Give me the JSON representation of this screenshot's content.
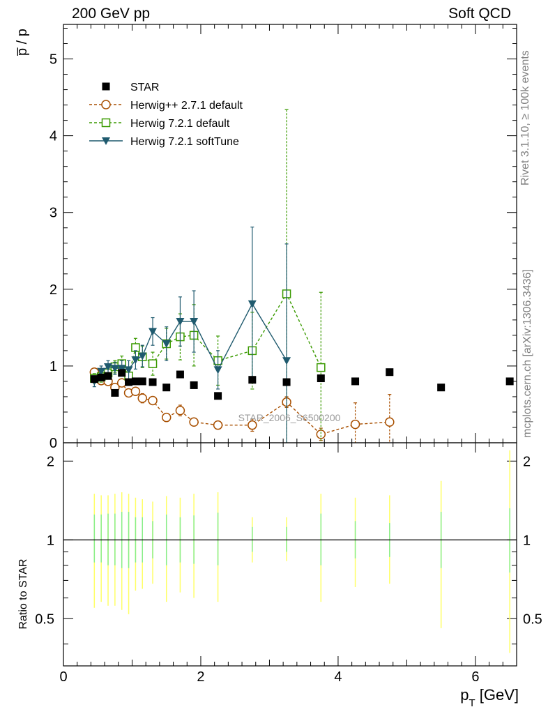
{
  "header": {
    "left_title": "200 GeV pp",
    "right_title": "Soft QCD"
  },
  "side_labels": {
    "rivet": "Rivet 3.1.10, ≥ 100k events",
    "mcplots": "mcplots.cern.ch [arXiv:1306.3436]"
  },
  "watermark": "STAR_2006_S6500200",
  "colors": {
    "STAR": "#000000",
    "herwigpp": "#a84f00",
    "herwig721_default": "#3a9a00",
    "herwig721_softtune": "#1f5a6e",
    "band_yellow": "#ffff66",
    "band_green": "#88ee88"
  },
  "chart_data": [
    {
      "type": "scatter",
      "ylabel": "p̅ / p",
      "ylim": [
        0,
        5.45
      ],
      "xlim": [
        0,
        6.6
      ],
      "yticks": [
        0,
        1,
        2,
        3,
        4,
        5
      ],
      "ytick_labels": [
        "0",
        "1",
        "2",
        "3",
        "4",
        "5"
      ],
      "legend_position": "top-left",
      "series": [
        {
          "name": "STAR",
          "marker": "filled-square",
          "points": [
            [
              0.45,
              0.83
            ],
            [
              0.55,
              0.85
            ],
            [
              0.65,
              0.87
            ],
            [
              0.75,
              0.65
            ],
            [
              0.85,
              0.91
            ],
            [
              0.95,
              0.79
            ],
            [
              1.05,
              0.8
            ],
            [
              1.15,
              0.8
            ],
            [
              1.3,
              0.79
            ],
            [
              1.5,
              0.72
            ],
            [
              1.7,
              0.89
            ],
            [
              1.9,
              0.75
            ],
            [
              2.25,
              0.61
            ],
            [
              2.75,
              0.82
            ],
            [
              3.25,
              0.79
            ],
            [
              3.75,
              0.84
            ],
            [
              4.25,
              0.8
            ],
            [
              4.75,
              0.92
            ],
            [
              5.5,
              0.72
            ],
            [
              6.5,
              0.8
            ]
          ]
        },
        {
          "name": "Herwig++ 2.7.1 default",
          "marker": "open-circle",
          "points": [
            [
              0.45,
              0.92,
              0.05
            ],
            [
              0.55,
              0.81,
              0.04
            ],
            [
              0.65,
              0.8,
              0.04
            ],
            [
              0.75,
              0.72,
              0.04
            ],
            [
              0.85,
              0.78,
              0.05
            ],
            [
              0.95,
              0.65,
              0.05
            ],
            [
              1.05,
              0.67,
              0.05
            ],
            [
              1.15,
              0.58,
              0.06
            ],
            [
              1.3,
              0.55,
              0.05
            ],
            [
              1.5,
              0.33,
              0.05
            ],
            [
              1.7,
              0.42,
              0.07
            ],
            [
              1.9,
              0.27,
              0.05
            ],
            [
              2.25,
              0.23,
              0.05
            ],
            [
              2.75,
              0.23,
              0.08
            ],
            [
              3.25,
              0.53,
              0.07
            ],
            [
              3.75,
              0.11,
              0.08
            ],
            [
              4.25,
              0.24,
              0.28
            ],
            [
              4.75,
              0.27,
              0.36
            ]
          ]
        },
        {
          "name": "Herwig 7.2.1 default",
          "marker": "open-square",
          "points": [
            [
              0.45,
              0.84,
              0.06
            ],
            [
              0.55,
              0.86,
              0.07
            ],
            [
              0.65,
              0.91,
              0.08
            ],
            [
              0.75,
              0.99,
              0.08
            ],
            [
              0.85,
              1.03,
              0.1
            ],
            [
              0.95,
              0.87,
              0.1
            ],
            [
              1.05,
              1.24,
              0.12
            ],
            [
              1.15,
              1.12,
              0.14
            ],
            [
              1.3,
              1.03,
              0.15
            ],
            [
              1.5,
              1.29,
              0.2
            ],
            [
              1.7,
              1.38,
              0.3
            ],
            [
              1.9,
              1.4,
              0.4
            ],
            [
              2.25,
              1.07,
              0.32
            ],
            [
              2.75,
              1.2,
              0.5
            ],
            [
              3.25,
              1.94,
              2.4
            ],
            [
              3.75,
              0.98,
              0.98
            ]
          ]
        },
        {
          "name": "Herwig 7.2.1 softTune",
          "marker": "filled-triangle-down",
          "points": [
            [
              0.45,
              0.8,
              0.07
            ],
            [
              0.55,
              0.93,
              0.07
            ],
            [
              0.65,
              0.99,
              0.08
            ],
            [
              0.75,
              0.97,
              0.08
            ],
            [
              0.85,
              0.97,
              0.1
            ],
            [
              0.95,
              0.95,
              0.12
            ],
            [
              1.05,
              1.08,
              0.12
            ],
            [
              1.15,
              1.13,
              0.14
            ],
            [
              1.3,
              1.45,
              0.18
            ],
            [
              1.5,
              1.29,
              0.22
            ],
            [
              1.7,
              1.58,
              0.32
            ],
            [
              1.9,
              1.58,
              0.4
            ],
            [
              2.25,
              0.95,
              0.25
            ],
            [
              2.75,
              1.81,
              1.0
            ],
            [
              3.25,
              1.07,
              1.52
            ]
          ]
        }
      ]
    },
    {
      "type": "scatter",
      "ylabel": "Ratio to STAR",
      "xlabel": "p_T [GeV]",
      "xlim": [
        0,
        6.6
      ],
      "ylim": [
        0.33,
        2.35
      ],
      "yscale": "log",
      "yticks": [
        0.5,
        1,
        2
      ],
      "ytick_labels": [
        "0.5",
        "1",
        "2"
      ],
      "xticks": [
        0,
        2,
        4,
        6
      ],
      "xtick_labels": [
        "0",
        "2",
        "4",
        "6"
      ],
      "reference_line": 1,
      "bands": [
        {
          "x": 0.45,
          "stat": [
            0.82,
            1.25
          ],
          "total": [
            0.55,
            1.5
          ]
        },
        {
          "x": 0.55,
          "stat": [
            0.82,
            1.25
          ],
          "total": [
            0.58,
            1.48
          ]
        },
        {
          "x": 0.65,
          "stat": [
            0.8,
            1.26
          ],
          "total": [
            0.56,
            1.48
          ]
        },
        {
          "x": 0.75,
          "stat": [
            0.8,
            1.26
          ],
          "total": [
            0.56,
            1.5
          ]
        },
        {
          "x": 0.85,
          "stat": [
            0.78,
            1.28
          ],
          "total": [
            0.54,
            1.52
          ]
        },
        {
          "x": 0.95,
          "stat": [
            0.78,
            1.28
          ],
          "total": [
            0.52,
            1.5
          ]
        },
        {
          "x": 1.05,
          "stat": [
            0.82,
            1.22
          ],
          "total": [
            0.64,
            1.45
          ]
        },
        {
          "x": 1.15,
          "stat": [
            0.82,
            1.22
          ],
          "total": [
            0.65,
            1.43
          ]
        },
        {
          "x": 1.3,
          "stat": [
            0.85,
            1.18
          ],
          "total": [
            0.68,
            1.4
          ]
        },
        {
          "x": 1.5,
          "stat": [
            0.8,
            1.25
          ],
          "total": [
            0.58,
            1.47
          ]
        },
        {
          "x": 1.7,
          "stat": [
            0.82,
            1.22
          ],
          "total": [
            0.63,
            1.45
          ]
        },
        {
          "x": 1.9,
          "stat": [
            0.81,
            1.24
          ],
          "total": [
            0.6,
            1.5
          ]
        },
        {
          "x": 2.25,
          "stat": [
            0.8,
            1.27
          ],
          "total": [
            0.58,
            1.52
          ]
        },
        {
          "x": 2.75,
          "stat": [
            0.9,
            1.12
          ],
          "total": [
            0.82,
            1.22
          ]
        },
        {
          "x": 3.25,
          "stat": [
            0.9,
            1.12
          ],
          "total": [
            0.83,
            1.22
          ]
        },
        {
          "x": 3.75,
          "stat": [
            0.8,
            1.26
          ],
          "total": [
            0.58,
            1.5
          ]
        },
        {
          "x": 4.25,
          "stat": [
            0.85,
            1.18
          ],
          "total": [
            0.66,
            1.45
          ]
        },
        {
          "x": 4.75,
          "stat": [
            0.86,
            1.16
          ],
          "total": [
            0.68,
            1.48
          ]
        },
        {
          "x": 5.5,
          "stat": [
            0.78,
            1.28
          ],
          "total": [
            0.46,
            1.68
          ]
        },
        {
          "x": 6.5,
          "stat": [
            0.75,
            1.32
          ],
          "total": [
            0.37,
            2.2
          ]
        }
      ]
    }
  ]
}
